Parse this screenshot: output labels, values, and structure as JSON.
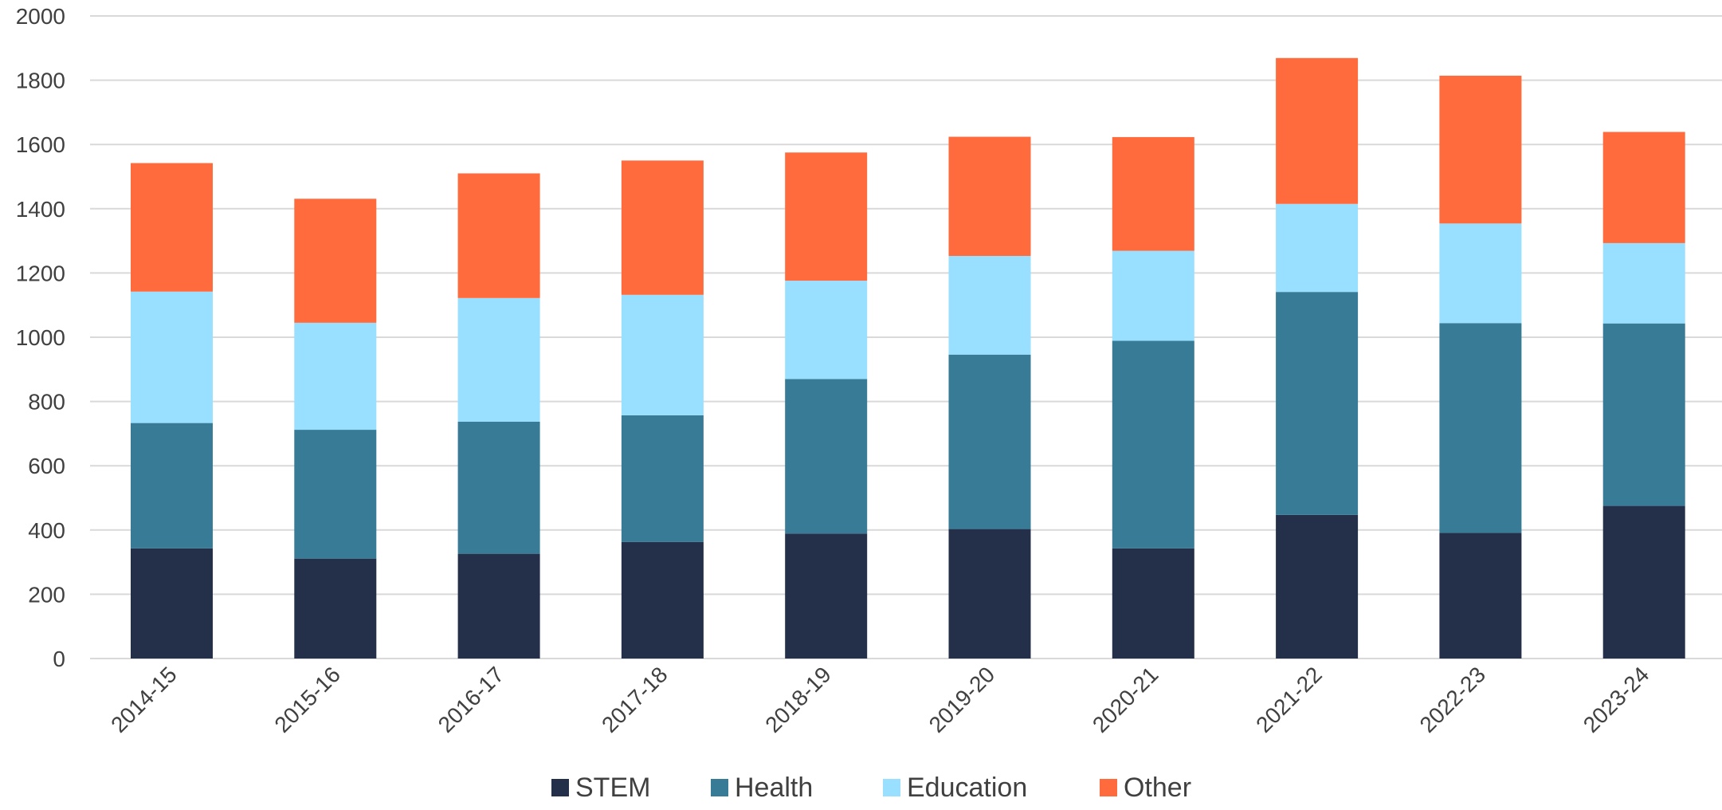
{
  "chart_data": {
    "type": "bar",
    "stacked": true,
    "title": "",
    "xlabel": "",
    "ylabel": "",
    "ylim": [
      0,
      2000
    ],
    "yticks": [
      0,
      200,
      400,
      600,
      800,
      1000,
      1200,
      1400,
      1600,
      1800,
      2000
    ],
    "grid": true,
    "legend_position": "bottom",
    "categories": [
      "2014-15",
      "2015-16",
      "2016-17",
      "2017-18",
      "2018-19",
      "2019-20",
      "2020-21",
      "2021-22",
      "2022-23",
      "2023-24"
    ],
    "series": [
      {
        "name": "STEM",
        "color": "#243049",
        "values": [
          343,
          311,
          326,
          363,
          389,
          403,
          343,
          447,
          391,
          475
        ]
      },
      {
        "name": "Health",
        "color": "#377B97",
        "values": [
          390,
          401,
          411,
          394,
          481,
          543,
          646,
          694,
          653,
          568
        ]
      },
      {
        "name": "Education",
        "color": "#99DFFF",
        "values": [
          409,
          333,
          385,
          375,
          306,
          307,
          280,
          274,
          310,
          250
        ]
      },
      {
        "name": "Other",
        "color": "#FF6B3D",
        "values": [
          400,
          386,
          388,
          418,
          399,
          371,
          354,
          454,
          460,
          346
        ]
      }
    ]
  }
}
